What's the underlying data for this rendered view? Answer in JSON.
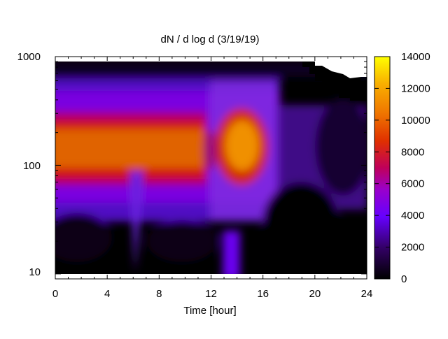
{
  "chart_data": {
    "type": "heatmap",
    "title": "dN / d log d (3/19/19)",
    "xlabel": "Time [hour]",
    "ylabel": "",
    "x_ticks": [
      0,
      4,
      8,
      12,
      16,
      20,
      24
    ],
    "xlim": [
      0,
      24
    ],
    "y_scale": "log",
    "y_ticks": [
      10,
      100,
      1000
    ],
    "ylim": [
      9,
      1000
    ],
    "colorbar": {
      "range": [
        0,
        14000
      ],
      "ticks": [
        0,
        2000,
        4000,
        6000,
        8000,
        10000,
        12000,
        14000
      ],
      "palette": "gnuplot-black-purple-red-orange-yellow"
    },
    "features": [
      {
        "time_h": [
          0,
          11
        ],
        "diameter_peak": 130,
        "value": 8800
      },
      {
        "time_h": [
          6.3
        ],
        "diameter_dip": 30,
        "value": 1000
      },
      {
        "time_h": [
          14.5
        ],
        "diameter_peak": 140,
        "value": 11500
      },
      {
        "time_h": [
          20,
          24
        ],
        "diameter": [
          400,
          900
        ],
        "value": 0
      }
    ]
  }
}
